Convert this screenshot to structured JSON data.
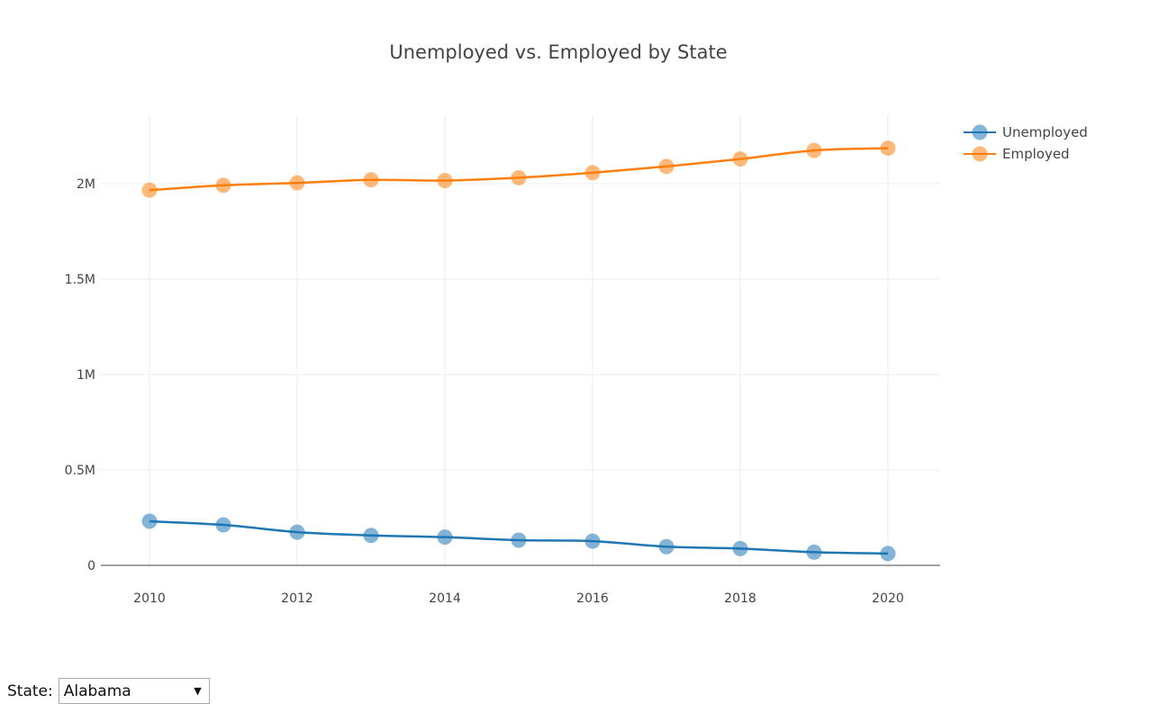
{
  "chart_data": {
    "type": "line",
    "title": "Unemployed vs. Employed by State",
    "xlabel": "",
    "ylabel": "",
    "x": [
      2010,
      2011,
      2012,
      2013,
      2014,
      2015,
      2016,
      2017,
      2018,
      2019,
      2020
    ],
    "xlim": [
      2009.35,
      2020.7
    ],
    "ylim": [
      0,
      2000000
    ],
    "xticks": [
      2010,
      2012,
      2014,
      2016,
      2018,
      2020
    ],
    "xtick_labels": [
      "2010",
      "2012",
      "2014",
      "2016",
      "2018",
      "2020"
    ],
    "yticks": [
      0,
      500000,
      1000000,
      1500000,
      2000000
    ],
    "ytick_labels": [
      "0",
      "0.5M",
      "1M",
      "1.5M",
      "2M"
    ],
    "grid": true,
    "legend_position": "top-right",
    "series": [
      {
        "name": "Unemployed",
        "color": "#1f77b4",
        "values": [
          231000,
          212000,
          174000,
          157000,
          148000,
          132000,
          127000,
          98000,
          88000,
          69000,
          62000
        ]
      },
      {
        "name": "Employed",
        "color": "#ff7f0e",
        "values": [
          1966000,
          1991000,
          2004000,
          2020000,
          2016000,
          2031000,
          2057000,
          2090000,
          2129000,
          2174000,
          2186000
        ]
      }
    ]
  },
  "controls": {
    "state_label": "State:",
    "state_value": "Alabama",
    "dropdown_arrow": "▼"
  }
}
